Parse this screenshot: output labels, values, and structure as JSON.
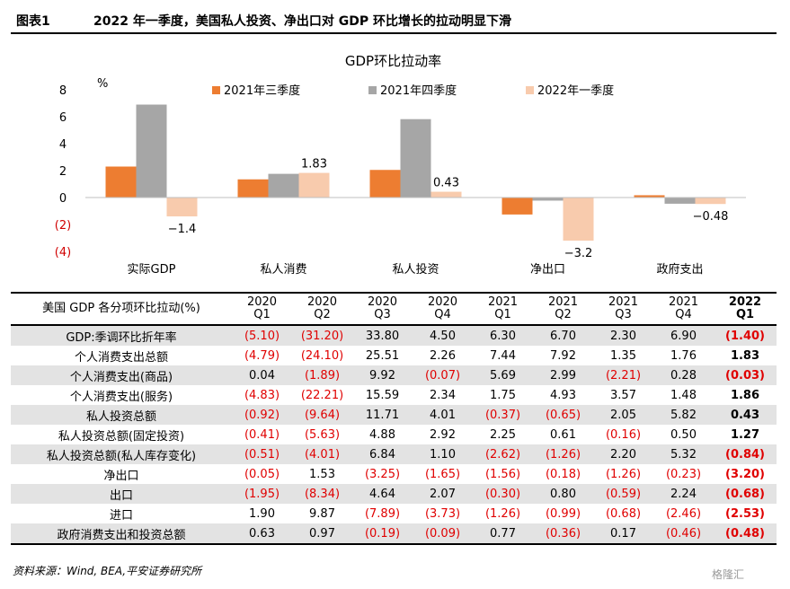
{
  "figure": {
    "label": "图表1",
    "title": "2022 年一季度，美国私人投资、净出口对 GDP 环比增长的拉动明显下滑"
  },
  "chart_data": {
    "type": "bar",
    "title": "GDP环比拉动率",
    "ylabel": "%",
    "ylim": [
      -4,
      8
    ],
    "yticks": [
      "8",
      "6",
      "4",
      "2",
      "0",
      "(2)",
      "(4)"
    ],
    "categories": [
      "实际GDP",
      "私人消费",
      "私人投资",
      "净出口",
      "政府支出"
    ],
    "series": [
      {
        "name": "2021年三季度",
        "values": [
          2.3,
          1.35,
          2.05,
          -1.26,
          0.17
        ]
      },
      {
        "name": "2021年四季度",
        "values": [
          6.9,
          1.76,
          5.82,
          -0.23,
          -0.46
        ]
      },
      {
        "name": "2022年一季度",
        "values": [
          -1.4,
          1.83,
          0.43,
          -3.2,
          -0.48
        ]
      }
    ],
    "data_labels": [
      {
        "category": 0,
        "series": 2,
        "text": "−1.4"
      },
      {
        "category": 1,
        "series": 2,
        "text": "1.83"
      },
      {
        "category": 2,
        "series": 2,
        "text": "0.43"
      },
      {
        "category": 3,
        "series": 2,
        "text": "−3.2"
      },
      {
        "category": 4,
        "series": 2,
        "text": "−0.48"
      }
    ],
    "colors": [
      "#ed7d31",
      "#a6a6a6",
      "#f8cbad"
    ],
    "legend_position": "top",
    "grid": false
  },
  "table": {
    "header_first": "美国 GDP 各分项环比拉动(%)",
    "columns": [
      {
        "y": "2020",
        "q": "Q1"
      },
      {
        "y": "2020",
        "q": "Q2"
      },
      {
        "y": "2020",
        "q": "Q3"
      },
      {
        "y": "2020",
        "q": "Q4"
      },
      {
        "y": "2021",
        "q": "Q1"
      },
      {
        "y": "2021",
        "q": "Q2"
      },
      {
        "y": "2021",
        "q": "Q3"
      },
      {
        "y": "2021",
        "q": "Q4"
      },
      {
        "y": "2022",
        "q": "Q1"
      }
    ],
    "rows": [
      {
        "label": "GDP:季调环比折年率",
        "cells": [
          "(5.10)",
          "(31.20)",
          "33.80",
          "4.50",
          "6.30",
          "6.70",
          "2.30",
          "6.90",
          "(1.40)"
        ]
      },
      {
        "label": "个人消费支出总额",
        "cells": [
          "(4.79)",
          "(24.10)",
          "25.51",
          "2.26",
          "7.44",
          "7.92",
          "1.35",
          "1.76",
          "1.83"
        ]
      },
      {
        "label": "个人消费支出(商品)",
        "cells": [
          "0.04",
          "(1.89)",
          "9.92",
          "(0.07)",
          "5.69",
          "2.99",
          "(2.21)",
          "0.28",
          "(0.03)"
        ]
      },
      {
        "label": "个人消费支出(服务)",
        "cells": [
          "(4.83)",
          "(22.21)",
          "15.59",
          "2.34",
          "1.75",
          "4.93",
          "3.57",
          "1.48",
          "1.86"
        ]
      },
      {
        "label": "私人投资总额",
        "cells": [
          "(0.92)",
          "(9.64)",
          "11.71",
          "4.01",
          "(0.37)",
          "(0.65)",
          "2.05",
          "5.82",
          "0.43"
        ]
      },
      {
        "label": "私人投资总额(固定投资)",
        "cells": [
          "(0.41)",
          "(5.63)",
          "4.88",
          "2.92",
          "2.25",
          "0.61",
          "(0.16)",
          "0.50",
          "1.27"
        ]
      },
      {
        "label": "私人投资总额(私人库存变化)",
        "cells": [
          "(0.51)",
          "(4.01)",
          "6.84",
          "1.10",
          "(2.62)",
          "(1.26)",
          "2.20",
          "5.32",
          "(0.84)"
        ]
      },
      {
        "label": "净出口",
        "cells": [
          "(0.05)",
          "1.53",
          "(3.25)",
          "(1.65)",
          "(1.56)",
          "(0.18)",
          "(1.26)",
          "(0.23)",
          "(3.20)"
        ]
      },
      {
        "label": "出口",
        "cells": [
          "(1.95)",
          "(8.34)",
          "4.64",
          "2.07",
          "(0.30)",
          "0.80",
          "(0.59)",
          "2.24",
          "(0.68)"
        ]
      },
      {
        "label": "进口",
        "cells": [
          "1.90",
          "9.87",
          "(7.89)",
          "(3.73)",
          "(1.26)",
          "(0.99)",
          "(0.68)",
          "(2.46)",
          "(2.53)"
        ]
      },
      {
        "label": "政府消费支出和投资总额",
        "cells": [
          "0.63",
          "0.97",
          "(0.19)",
          "(0.09)",
          "0.77",
          "(0.36)",
          "0.17",
          "(0.46)",
          "(0.48)"
        ]
      }
    ]
  },
  "source": "资料来源：Wind, BEA,平安证券研究所",
  "watermark": "格隆汇"
}
